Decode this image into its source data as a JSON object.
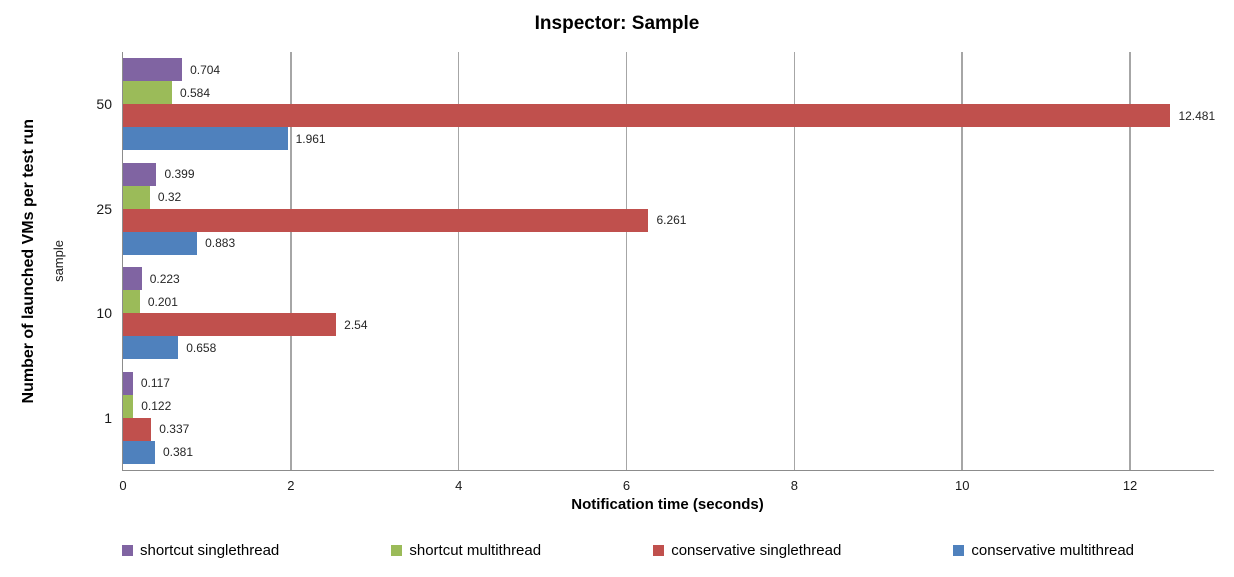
{
  "chart_data": {
    "type": "bar",
    "orientation": "horizontal",
    "title": "Inspector: Sample",
    "xlabel": "Notification time (seconds)",
    "ylabel": "Number of launched VMs per test run",
    "ylabel_secondary": "sample",
    "categories": [
      "50",
      "25",
      "10",
      "1"
    ],
    "series": [
      {
        "name": "shortcut singlethread",
        "color": "#8064A2",
        "values": [
          0.704,
          0.399,
          0.223,
          0.117
        ]
      },
      {
        "name": "shortcut multithread",
        "color": "#9BBB59",
        "values": [
          0.584,
          0.32,
          0.201,
          0.122
        ]
      },
      {
        "name": "conservative singlethread",
        "color": "#C0504D",
        "values": [
          12.481,
          6.261,
          2.54,
          0.337
        ]
      },
      {
        "name": "conservative multithread",
        "color": "#4F81BD",
        "values": [
          1.961,
          0.883,
          0.658,
          0.381
        ]
      }
    ],
    "xlim": [
      0,
      13
    ],
    "x_ticks": [
      0,
      2,
      4,
      6,
      8,
      10,
      12
    ],
    "grid": true,
    "data_labels_shown": true,
    "legend_position": "bottom",
    "colors": {
      "gridline": "#a6a6a6",
      "axis_line": "#8c8c8c",
      "label_text": "#262626"
    }
  }
}
